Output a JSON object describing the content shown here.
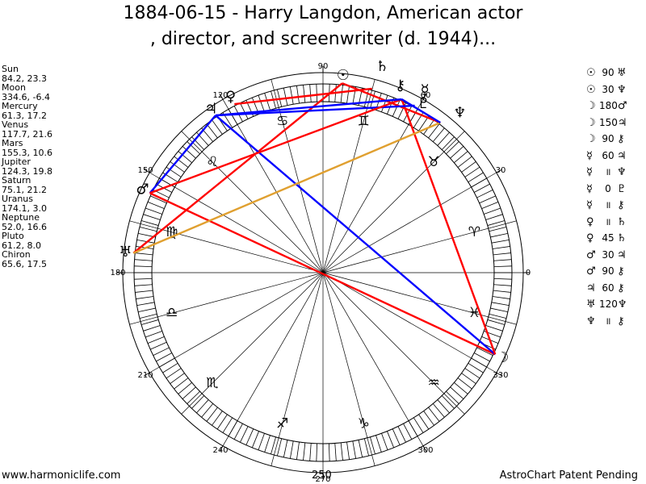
{
  "title_line1": "1884-06-15 - Harry Langdon, American actor",
  "title_line2": ", director, and screenwriter (d. 1944)...",
  "planets": [
    {
      "name": "Sun",
      "glyph": "☉",
      "longitude": 84.2,
      "latitude": 23.3,
      "text": "84.2, 23.3"
    },
    {
      "name": "Moon",
      "glyph": "☽",
      "longitude": 334.6,
      "latitude": -6.4,
      "text": "334.6, -6.4"
    },
    {
      "name": "Mercury",
      "glyph": "☿",
      "longitude": 61.3,
      "latitude": 17.2,
      "text": "61.3, 17.2"
    },
    {
      "name": "Venus",
      "glyph": "♀",
      "longitude": 117.7,
      "latitude": 21.6,
      "text": "117.7, 21.6"
    },
    {
      "name": "Mars",
      "glyph": "♂",
      "longitude": 155.3,
      "latitude": 10.6,
      "text": "155.3, 10.6"
    },
    {
      "name": "Jupiter",
      "glyph": "♃",
      "longitude": 124.3,
      "latitude": 19.8,
      "text": "124.3, 19.8"
    },
    {
      "name": "Saturn",
      "glyph": "♄",
      "longitude": 75.1,
      "latitude": 21.2,
      "text": "75.1, 21.2"
    },
    {
      "name": "Uranus",
      "glyph": "♅",
      "longitude": 174.1,
      "latitude": 3.0,
      "text": "174.1, 3.0"
    },
    {
      "name": "Neptune",
      "glyph": "♆",
      "longitude": 52.0,
      "latitude": 16.6,
      "text": "52.0, 16.6"
    },
    {
      "name": "Pluto",
      "glyph": "♇",
      "longitude": 61.2,
      "latitude": 8.0,
      "text": "61.2, 8.0"
    },
    {
      "name": "Chiron",
      "glyph": "⚷",
      "longitude": 65.6,
      "latitude": 17.5,
      "text": "65.6, 17.5"
    }
  ],
  "aspects": [
    {
      "p1": "☉",
      "value": "90",
      "p2": "♅"
    },
    {
      "p1": "☉",
      "value": "30",
      "p2": "♆"
    },
    {
      "p1": "☽",
      "value": "180",
      "p2": "♂"
    },
    {
      "p1": "☽",
      "value": "150",
      "p2": "♃"
    },
    {
      "p1": "☽",
      "value": "90",
      "p2": "⚷"
    },
    {
      "p1": "☿",
      "value": "60",
      "p2": "♃"
    },
    {
      "p1": "☿",
      "value": "॥",
      "p2": "♆"
    },
    {
      "p1": "☿",
      "value": "0",
      "p2": "♇"
    },
    {
      "p1": "☿",
      "value": "॥",
      "p2": "⚷"
    },
    {
      "p1": "♀",
      "value": "॥",
      "p2": "♄"
    },
    {
      "p1": "♀",
      "value": "45",
      "p2": "♄"
    },
    {
      "p1": "♂",
      "value": "30",
      "p2": "♃"
    },
    {
      "p1": "♂",
      "value": "90",
      "p2": "⚷"
    },
    {
      "p1": "♃",
      "value": "60",
      "p2": "⚷"
    },
    {
      "p1": "♅",
      "value": "120",
      "p2": "♆"
    },
    {
      "p1": "♆",
      "value": "॥",
      "p2": "⚷"
    }
  ],
  "degree_labels": [
    "0",
    "30",
    "60",
    "90",
    "120",
    "150",
    "180",
    "210",
    "240",
    "270",
    "300",
    "330"
  ],
  "zodiac_signs": [
    "♈",
    "♉",
    "♊",
    "♋",
    "♌",
    "♍",
    "♎",
    "♏",
    "♐",
    "♑",
    "♒",
    "♓"
  ],
  "chart_lines": [
    {
      "from": "☉",
      "to": "♅",
      "color": "#ff0000"
    },
    {
      "from": "☉",
      "to": "♆",
      "color": "#ff0000"
    },
    {
      "from": "☽",
      "to": "♂",
      "color": "#ff0000"
    },
    {
      "from": "☽",
      "to": "♃",
      "color": "#0000ff"
    },
    {
      "from": "☽",
      "to": "⚷",
      "color": "#ff0000"
    },
    {
      "from": "☿",
      "to": "♃",
      "color": "#0000ff"
    },
    {
      "from": "☿",
      "to": "♇",
      "color": "#0000ff"
    },
    {
      "from": "♀",
      "to": "♄",
      "color": "#ff0000"
    },
    {
      "from": "♂",
      "to": "♃",
      "color": "#0000ff"
    },
    {
      "from": "♂",
      "to": "⚷",
      "color": "#ff0000"
    },
    {
      "from": "♃",
      "to": "⚷",
      "color": "#0000ff"
    },
    {
      "from": "♅",
      "to": "♆",
      "color": "#e0a030"
    },
    {
      "from": "♆",
      "to": "⚷",
      "color": "#0000ff"
    }
  ],
  "footer_left": "www.harmoniclife.com",
  "footer_center": "250",
  "footer_right": "AstroChart Patent Pending"
}
